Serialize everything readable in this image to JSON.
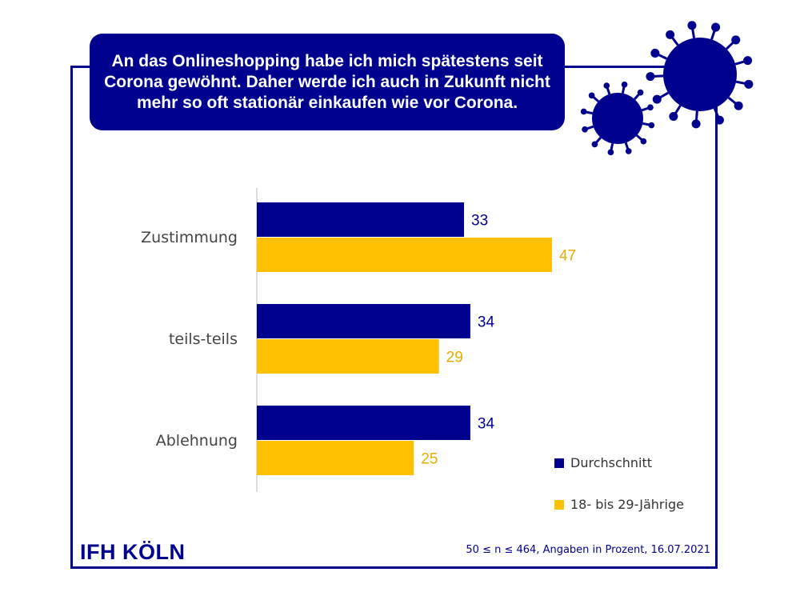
{
  "title": "An das Onlineshopping habe ich mich spätestens seit Corona gewöhnt. Daher werde ich auch in Zukunft nicht mehr so oft stationär einkaufen wie vor Corona.",
  "logo": "IFH KÖLN",
  "note": "50 ≤ n ≤ 464, Angaben in Prozent, 16.07.2021",
  "colors": {
    "navy": "#00008f",
    "yellow": "#ffc000"
  },
  "chart_data": {
    "type": "bar",
    "orientation": "horizontal",
    "categories": [
      "Zustimmung",
      "teils-teils",
      "Ablehnung"
    ],
    "series": [
      {
        "name": "Durchschnitt",
        "values": [
          33,
          34,
          34
        ],
        "color": "#00008f"
      },
      {
        "name": "18- bis 29-Jährige",
        "values": [
          47,
          29,
          25
        ],
        "color": "#ffc000"
      }
    ],
    "xlim": [
      0,
      50
    ],
    "legend": "bottom-right",
    "grid": false
  }
}
